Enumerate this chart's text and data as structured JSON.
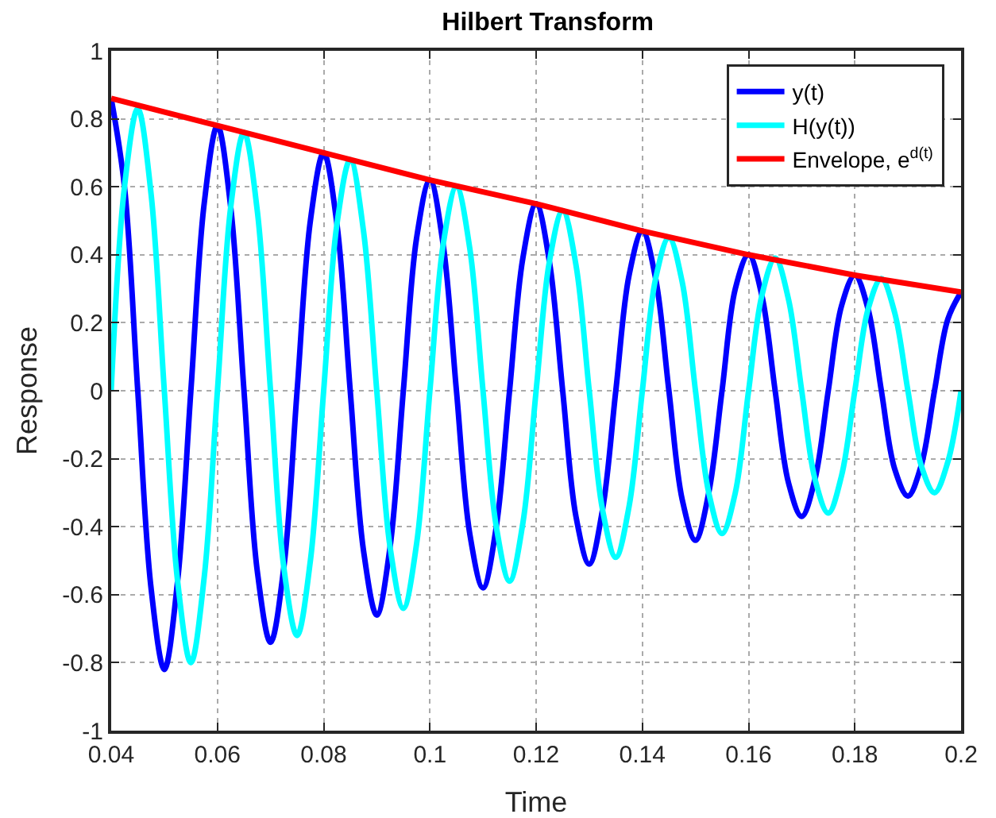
{
  "chart_data": {
    "type": "line",
    "title": "Hilbert Transform",
    "xlabel": "Time",
    "ylabel": "Response",
    "x": [
      0.04,
      0.0425,
      0.045,
      0.0475,
      0.05,
      0.0525,
      0.055,
      0.0575,
      0.06,
      0.0625,
      0.065,
      0.0675,
      0.07,
      0.0725,
      0.075,
      0.0775,
      0.08,
      0.0825,
      0.085,
      0.0875,
      0.09,
      0.0925,
      0.095,
      0.0975,
      0.1,
      0.1025,
      0.105,
      0.1075,
      0.11,
      0.1125,
      0.115,
      0.1175,
      0.12,
      0.1225,
      0.125,
      0.1275,
      0.13,
      0.1325,
      0.135,
      0.1375,
      0.14,
      0.1425,
      0.145,
      0.1475,
      0.15,
      0.1525,
      0.155,
      0.1575,
      0.16,
      0.1625,
      0.165,
      0.1675,
      0.17,
      0.1725,
      0.175,
      0.1775,
      0.18,
      0.1825,
      0.185,
      0.1875,
      0.19,
      0.1925,
      0.195,
      0.1975,
      0.2
    ],
    "series": [
      {
        "name": "y(t)",
        "color": "#0000ff",
        "values": [
          0.86,
          0.6,
          0,
          -0.58,
          -0.82,
          -0.56,
          0,
          0.55,
          0.78,
          0.54,
          0,
          -0.53,
          -0.74,
          -0.52,
          0,
          0.5,
          0.7,
          0.49,
          0,
          -0.47,
          -0.66,
          -0.46,
          0,
          0.45,
          0.62,
          0.43,
          0,
          -0.42,
          -0.58,
          -0.4,
          0,
          0.39,
          0.55,
          0.38,
          0,
          -0.37,
          -0.51,
          -0.35,
          0,
          0.34,
          0.47,
          0.33,
          0,
          -0.32,
          -0.44,
          -0.3,
          0,
          0.3,
          0.4,
          0.28,
          0,
          -0.27,
          -0.37,
          -0.26,
          0,
          0.25,
          0.34,
          0.24,
          0,
          -0.23,
          -0.31,
          -0.22,
          0,
          0.21,
          0.29
        ]
      },
      {
        "name": "H(y(t))",
        "color": "#00ffff",
        "values": [
          0,
          0.6,
          0.83,
          0.58,
          0,
          -0.56,
          -0.8,
          -0.55,
          0,
          0.54,
          0.76,
          0.53,
          0,
          -0.52,
          -0.72,
          -0.5,
          0,
          0.49,
          0.68,
          0.47,
          0,
          -0.46,
          -0.64,
          -0.45,
          0,
          0.43,
          0.6,
          0.42,
          0,
          -0.4,
          -0.56,
          -0.39,
          0,
          0.38,
          0.53,
          0.37,
          0,
          -0.35,
          -0.49,
          -0.34,
          0,
          0.33,
          0.45,
          0.32,
          0,
          -0.3,
          -0.42,
          -0.3,
          0,
          0.28,
          0.39,
          0.27,
          0,
          -0.26,
          -0.36,
          -0.25,
          0,
          0.24,
          0.33,
          0.23,
          0,
          -0.22,
          -0.3,
          -0.21,
          0
        ]
      },
      {
        "name": "Envelope, e$^{d(t)}$",
        "color": "#ff0000",
        "x": [
          0.04,
          0.06,
          0.08,
          0.1,
          0.12,
          0.14,
          0.16,
          0.18,
          0.2
        ],
        "values": [
          0.86,
          0.78,
          0.7,
          0.62,
          0.55,
          0.47,
          0.4,
          0.34,
          0.29
        ]
      }
    ],
    "xlim": [
      0.04,
      0.2
    ],
    "xticks": [
      0.04,
      0.06,
      0.08,
      0.1,
      0.12,
      0.14,
      0.16,
      0.18,
      0.2
    ],
    "ylim": [
      -1,
      1
    ],
    "yticks": [
      -1,
      -0.8,
      -0.6,
      -0.4,
      -0.2,
      0,
      0.2,
      0.4,
      0.6,
      0.8,
      1
    ],
    "grid": true,
    "legend": "top right",
    "marker": "none",
    "line_style": "solid"
  }
}
